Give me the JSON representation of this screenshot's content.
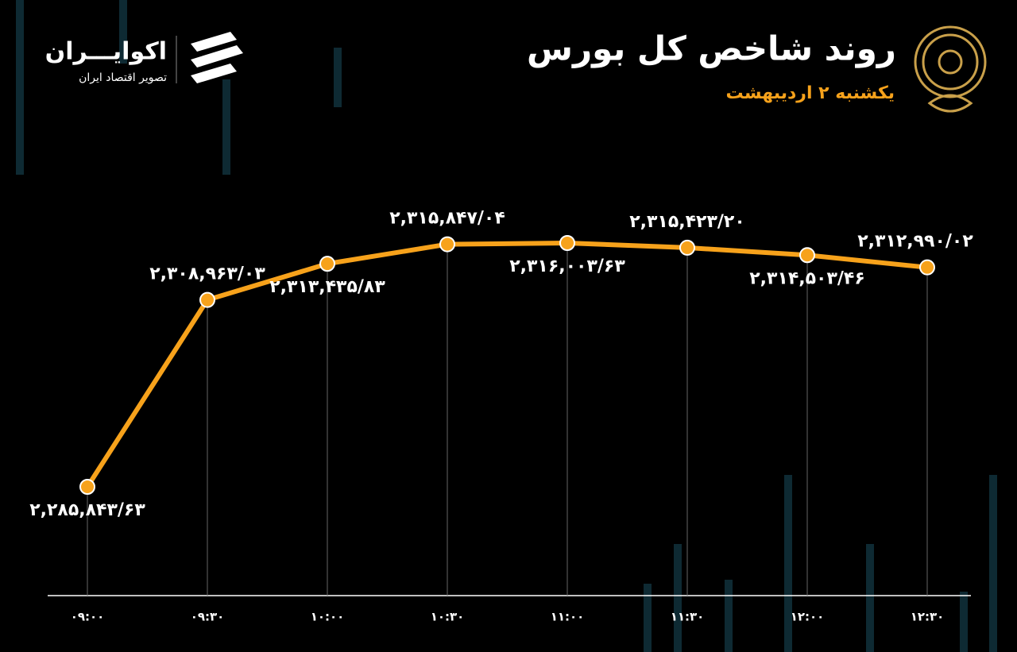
{
  "brand": {
    "name": "اکوایـــران",
    "tagline": "تصویر اقتصاد ایران"
  },
  "chart_data": {
    "type": "line",
    "title": "روند شاخص کل بورس",
    "subtitle": "یکشنبه ۲ اردیبهشت",
    "categories": [
      "۰۹:۰۰",
      "۰۹:۳۰",
      "۱۰:۰۰",
      "۱۰:۳۰",
      "۱۱:۰۰",
      "۱۱:۳۰",
      "۱۲:۰۰",
      "۱۲:۳۰"
    ],
    "color": "#f7a21b",
    "values": [
      2285843.63,
      2308963.03,
      2313435.83,
      2315847.04,
      2316003.63,
      2315423.2,
      2314503.46,
      2312990.02
    ],
    "value_labels": [
      "۲,۲۸۵,۸۴۳/۶۳",
      "۲,۳۰۸,۹۶۳/۰۳",
      "۲,۳۱۳,۴۳۵/۸۳",
      "۲,۳۱۵,۸۴۷/۰۴",
      "۲,۳۱۶,۰۰۳/۶۳",
      "۲,۳۱۵,۴۲۳/۲۰",
      "۲,۳۱۴,۵۰۳/۴۶",
      "۲,۳۱۲,۹۹۰/۰۲"
    ]
  }
}
